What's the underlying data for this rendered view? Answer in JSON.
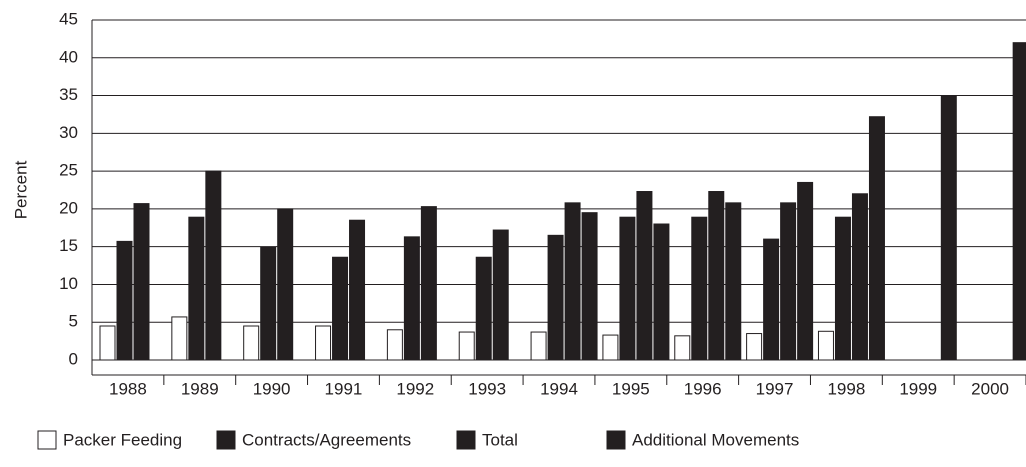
{
  "chart_data": {
    "type": "bar",
    "y_label": "Percent",
    "categories": [
      "1988",
      "1989",
      "1990",
      "1991",
      "1992",
      "1993",
      "1994",
      "1995",
      "1996",
      "1997",
      "1998",
      "1999",
      "2000"
    ],
    "series": [
      {
        "name": "Packer Feeding",
        "color": "#ffffff",
        "values": [
          4.5,
          5.7,
          4.5,
          4.5,
          4,
          3.7,
          3.7,
          3.3,
          3.2,
          3.5,
          3.8,
          null,
          null
        ]
      },
      {
        "name": "Contracts/Agreements",
        "color": "#231f20",
        "values": [
          15.7,
          18.9,
          14.9,
          13.6,
          16.3,
          13.6,
          16.5,
          18.9,
          18.9,
          16,
          18.9,
          null,
          null
        ]
      },
      {
        "name": "Total",
        "color": "#231f20",
        "values": [
          20.7,
          25,
          20,
          18.5,
          20.3,
          17.2,
          20.8,
          22.3,
          22.3,
          20.8,
          22,
          null,
          null
        ]
      },
      {
        "name": "Additional Movements",
        "color": "#231f20",
        "values": [
          null,
          null,
          null,
          null,
          null,
          null,
          19.5,
          18,
          20.8,
          23.5,
          32.2,
          35,
          42
        ]
      }
    ],
    "ylim": [
      0,
      45
    ],
    "yticks": [
      0,
      5,
      10,
      15,
      20,
      25,
      30,
      35,
      40,
      45
    ],
    "grid": true
  }
}
